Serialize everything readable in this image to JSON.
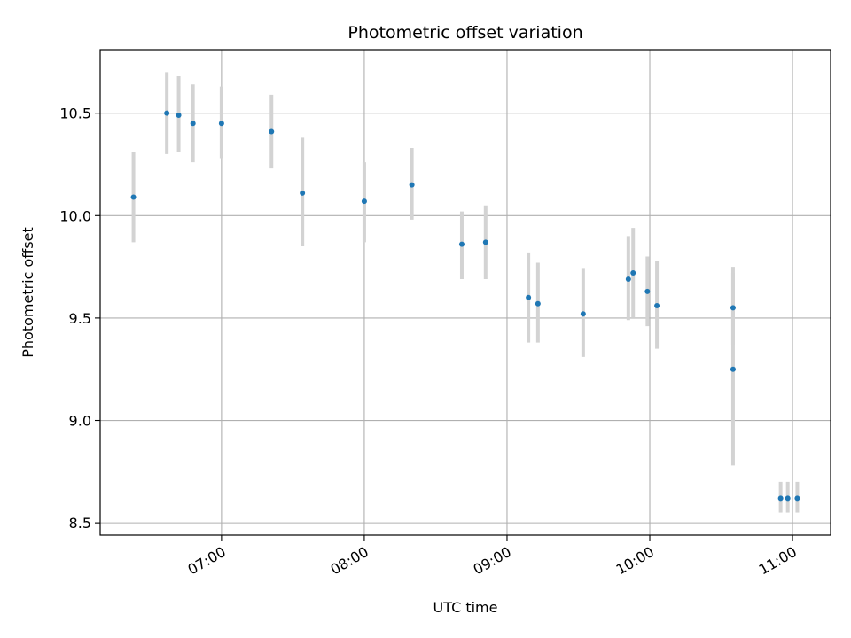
{
  "chart_data": {
    "type": "scatter",
    "title": "Photometric offset variation",
    "xlabel": "UTC time",
    "ylabel": "Photometric offset",
    "x_tick_labels": [
      "07:00",
      "08:00",
      "09:00",
      "10:00",
      "11:00"
    ],
    "x_ticks_hours": [
      7,
      8,
      9,
      10,
      11
    ],
    "y_ticks": [
      8.5,
      9.0,
      9.5,
      10.0,
      10.5
    ],
    "y_tick_labels": [
      "8.5",
      "9.0",
      "9.5",
      "10.0",
      "10.5"
    ],
    "xlim": [
      "06:09",
      "11:16"
    ],
    "ylim": [
      8.44,
      10.81
    ],
    "grid": true,
    "colors": {
      "point": "#1f77b4",
      "errorbar": "#d3d3d3",
      "grid": "#b0b0b0"
    },
    "series": [
      {
        "x": [
          "06:23",
          "06:37",
          "06:42",
          "06:48",
          "07:00",
          "07:21",
          "07:34",
          "08:00",
          "08:20",
          "08:41",
          "08:51",
          "09:09",
          "09:13",
          "09:32",
          "09:51",
          "09:53",
          "09:59",
          "10:03",
          "10:35",
          "10:35",
          "10:55",
          "10:58",
          "11:02"
        ],
        "y": [
          10.09,
          10.5,
          10.49,
          10.45,
          10.45,
          10.41,
          10.11,
          10.07,
          10.15,
          9.86,
          9.87,
          9.6,
          9.57,
          9.52,
          9.69,
          9.72,
          9.63,
          9.56,
          9.55,
          9.25,
          8.62,
          8.62,
          8.62
        ],
        "yerr_low": [
          9.87,
          10.3,
          10.31,
          10.26,
          10.28,
          10.23,
          9.85,
          9.87,
          9.98,
          9.69,
          9.69,
          9.38,
          9.38,
          9.31,
          9.49,
          9.5,
          9.46,
          9.35,
          9.37,
          8.78,
          8.55,
          8.55,
          8.55
        ],
        "yerr_high": [
          10.31,
          10.7,
          10.68,
          10.64,
          10.63,
          10.59,
          10.38,
          10.26,
          10.33,
          10.02,
          10.05,
          9.82,
          9.77,
          9.74,
          9.9,
          9.94,
          9.8,
          9.78,
          9.75,
          9.72,
          8.7,
          8.7,
          8.7
        ]
      }
    ]
  }
}
